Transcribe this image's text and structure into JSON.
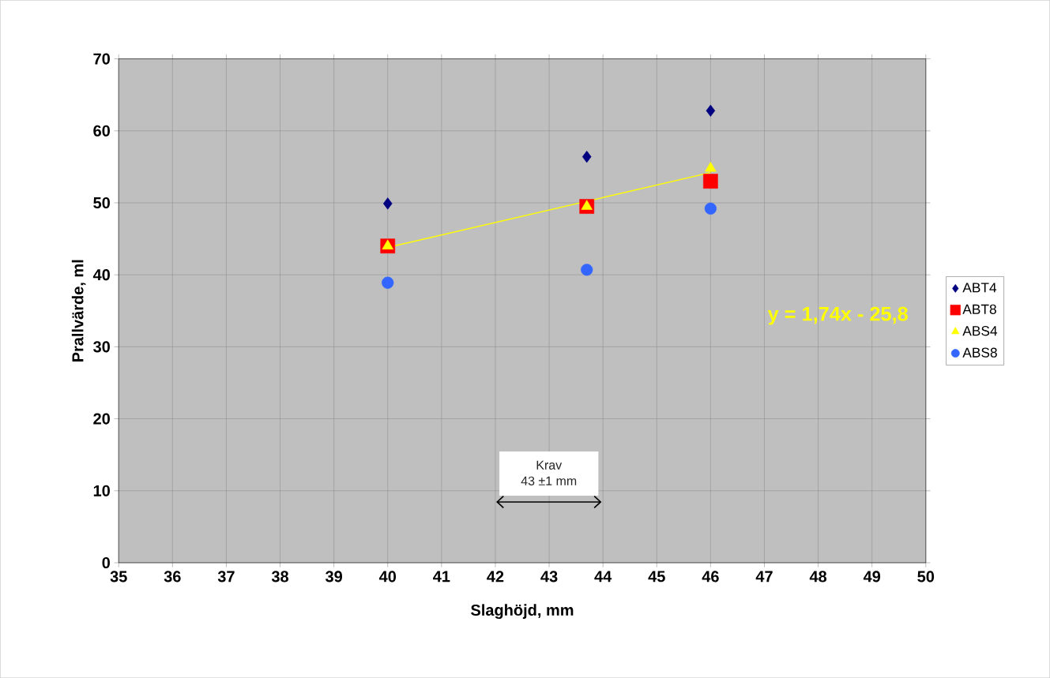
{
  "chart_data": {
    "type": "scatter",
    "xlabel": "Slaghöjd, mm",
    "ylabel": "Prallvärde, ml",
    "xlim": [
      35,
      50
    ],
    "xticks": [
      35,
      36,
      37,
      38,
      39,
      40,
      41,
      42,
      43,
      44,
      45,
      46,
      47,
      48,
      49,
      50
    ],
    "ylim": [
      0,
      70
    ],
    "yticks": [
      0,
      10,
      20,
      30,
      40,
      50,
      60,
      70
    ],
    "grid": true,
    "legend": "right",
    "x": [
      40,
      43.7,
      46
    ],
    "series": [
      {
        "name": "ABT4",
        "color": "#000080",
        "marker": "diamond",
        "values": [
          49.9,
          56.4,
          62.8
        ]
      },
      {
        "name": "ABT8",
        "color": "#ff0000",
        "marker": "square",
        "values": [
          44,
          49.5,
          53
        ]
      },
      {
        "name": "ABS4",
        "color": "#ffff00",
        "marker": "triangle",
        "values": [
          44,
          49.5,
          54.8
        ]
      },
      {
        "name": "ABS8",
        "color": "#3366ff",
        "marker": "circle",
        "values": [
          38.9,
          40.7,
          49.2
        ]
      },
      {
        "type": "line",
        "color": "#ffff00",
        "marker": "none",
        "line_style": "solid",
        "x": [
          40,
          46
        ],
        "values": [
          43.8,
          54.2
        ]
      }
    ],
    "annotations": [
      "y = 1,74x - 25,8",
      "Krav",
      "43 ±1 mm"
    ]
  }
}
